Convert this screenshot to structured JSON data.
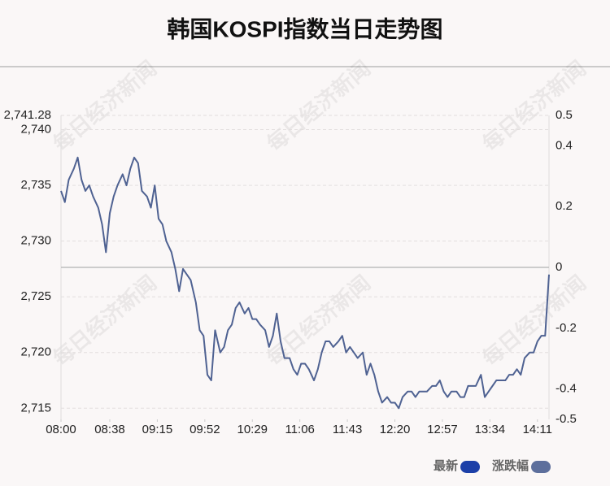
{
  "chart_data": {
    "type": "line",
    "title": "韩国KOSPI指数当日走势图",
    "watermark": "每日经济新闻",
    "x": [
      "08:00",
      "08:03",
      "08:06",
      "08:10",
      "08:13",
      "08:16",
      "08:19",
      "08:22",
      "08:25",
      "08:29",
      "08:32",
      "08:35",
      "08:38",
      "08:41",
      "08:44",
      "08:48",
      "08:51",
      "08:54",
      "08:57",
      "09:00",
      "09:03",
      "09:07",
      "09:10",
      "09:13",
      "09:16",
      "09:19",
      "09:22",
      "09:26",
      "09:29",
      "09:32",
      "09:35",
      "09:38",
      "09:41",
      "09:45",
      "09:48",
      "09:51",
      "09:54",
      "09:57",
      "10:00",
      "10:04",
      "10:07",
      "10:10",
      "10:13",
      "10:16",
      "10:19",
      "10:23",
      "10:26",
      "10:29",
      "10:32",
      "10:35",
      "10:39",
      "10:42",
      "10:45",
      "10:48",
      "10:51",
      "10:54",
      "10:58",
      "11:01",
      "11:04",
      "11:07",
      "11:10",
      "11:13",
      "11:17",
      "11:20",
      "11:23",
      "11:26",
      "11:29",
      "11:32",
      "11:36",
      "11:39",
      "11:42",
      "11:45",
      "11:48",
      "11:51",
      "11:55",
      "11:58",
      "12:01",
      "12:04",
      "12:07",
      "12:10",
      "12:14",
      "12:17",
      "12:20",
      "12:23",
      "12:26",
      "12:30",
      "12:33",
      "12:36",
      "12:39",
      "12:42",
      "12:45",
      "12:49",
      "12:52",
      "12:55",
      "12:58",
      "13:01",
      "13:04",
      "13:08",
      "13:11",
      "13:14",
      "13:17",
      "13:20",
      "13:23",
      "13:27",
      "13:30",
      "13:33",
      "13:36",
      "13:39",
      "13:42",
      "13:46",
      "13:49",
      "13:52",
      "13:55",
      "13:58",
      "14:01",
      "14:05",
      "14:08",
      "14:11",
      "14:14",
      "14:17",
      "14:20"
    ],
    "series": [
      {
        "color": "#4f6292",
        "values": [
          2734.5,
          2733.5,
          2735.5,
          2736.5,
          2737.5,
          2735.5,
          2734.5,
          2735,
          2734,
          2733,
          2731.5,
          2729,
          2732.5,
          2734,
          2735,
          2736,
          2735,
          2736.5,
          2737.5,
          2737,
          2734.5,
          2734,
          2733,
          2735,
          2732,
          2731.5,
          2730,
          2729,
          2727.5,
          2725.5,
          2727.5,
          2727,
          2726.5,
          2724.5,
          2722,
          2721.5,
          2718,
          2717.5,
          2722,
          2720,
          2720.5,
          2722,
          2722.5,
          2724,
          2724.5,
          2723.5,
          2724,
          2723,
          2723,
          2722.5,
          2722,
          2720.5,
          2721.5,
          2723.5,
          2721,
          2719.5,
          2719.5,
          2718.5,
          2718,
          2719,
          2719,
          2718.5,
          2717.5,
          2718.5,
          2720,
          2721,
          2721,
          2720.5,
          2721,
          2721.5,
          2720,
          2720.5,
          2720,
          2719.5,
          2720,
          2718,
          2719,
          2718,
          2716.5,
          2715.5,
          2716,
          2715.5,
          2715.5,
          2715,
          2716,
          2716.5,
          2716.5,
          2716,
          2716.5,
          2716.5,
          2716.5,
          2717,
          2717,
          2717.5,
          2716.5,
          2716,
          2716.5,
          2716.5,
          2716,
          2716,
          2717,
          2717,
          2717,
          2718,
          2716,
          2716.5,
          2717,
          2717.5,
          2717.5,
          2717.5,
          2718,
          2718,
          2718.5,
          2718,
          2719.5,
          2720,
          2720,
          2721,
          2721.5,
          2721.5,
          2727
        ]
      }
    ],
    "legend": [
      {
        "name": "最新",
        "color": "#1c3fa8"
      },
      {
        "name": "涨跌幅",
        "color": "#5d6f9c"
      }
    ],
    "xlim": [
      "08:00",
      "14:20"
    ],
    "xticks": [
      "08:00",
      "08:38",
      "09:15",
      "09:52",
      "10:29",
      "11:06",
      "11:43",
      "12:20",
      "12:57",
      "13:34",
      "14:11"
    ],
    "ylim": [
      2714,
      2741.28
    ],
    "yticks": [
      {
        "value": 2741.28,
        "label": "2,741.28"
      },
      {
        "value": 2740,
        "label": "2,740"
      },
      {
        "value": 2735,
        "label": "2,735"
      },
      {
        "value": 2730,
        "label": "2,730"
      },
      {
        "value": 2725,
        "label": "2,725"
      },
      {
        "value": 2720,
        "label": "2,720"
      },
      {
        "value": 2715,
        "label": "2,715"
      }
    ],
    "y2lim": [
      -0.5,
      0.5
    ],
    "y2ticks": [
      0.5,
      0.4,
      0.2,
      0,
      -0.2,
      -0.4,
      -0.5
    ],
    "grid": true
  }
}
